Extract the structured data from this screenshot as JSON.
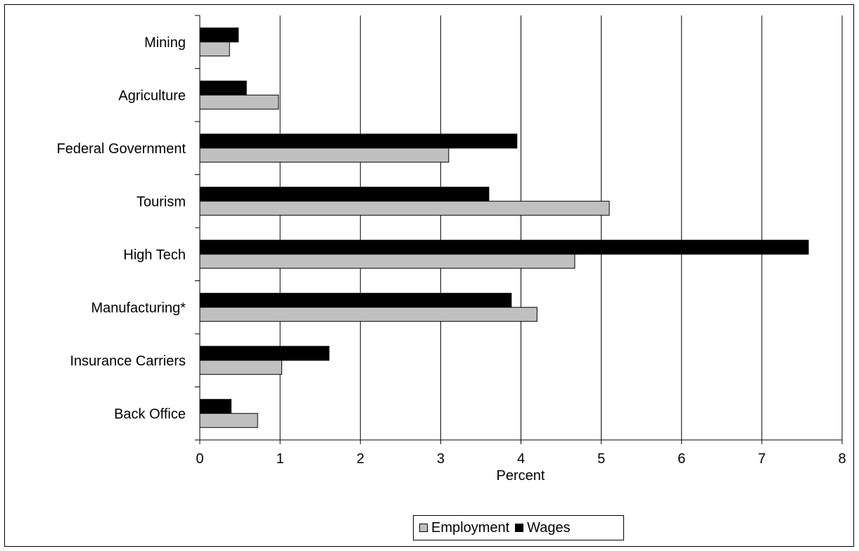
{
  "chart_data": {
    "type": "bar",
    "orientation": "horizontal",
    "categories": [
      "Mining",
      "Agriculture",
      "Federal Government",
      "Tourism",
      "High Tech",
      "Manufacturing*",
      "Insurance Carriers",
      "Back Office"
    ],
    "series": [
      {
        "name": "Employment",
        "color": "#c0c0c0",
        "values": [
          0.37,
          0.98,
          3.1,
          5.1,
          4.67,
          4.2,
          1.02,
          0.72
        ]
      },
      {
        "name": "Wages",
        "color": "#000000",
        "values": [
          0.48,
          0.58,
          3.95,
          3.6,
          7.58,
          3.88,
          1.61,
          0.39
        ]
      }
    ],
    "xlabel": "Percent",
    "ylabel": "",
    "xlim": [
      0,
      8
    ],
    "xticks": [
      "0",
      "1",
      "2",
      "3",
      "4",
      "5",
      "6",
      "7",
      "8"
    ],
    "grid": "vertical",
    "legend_position": "bottom"
  }
}
